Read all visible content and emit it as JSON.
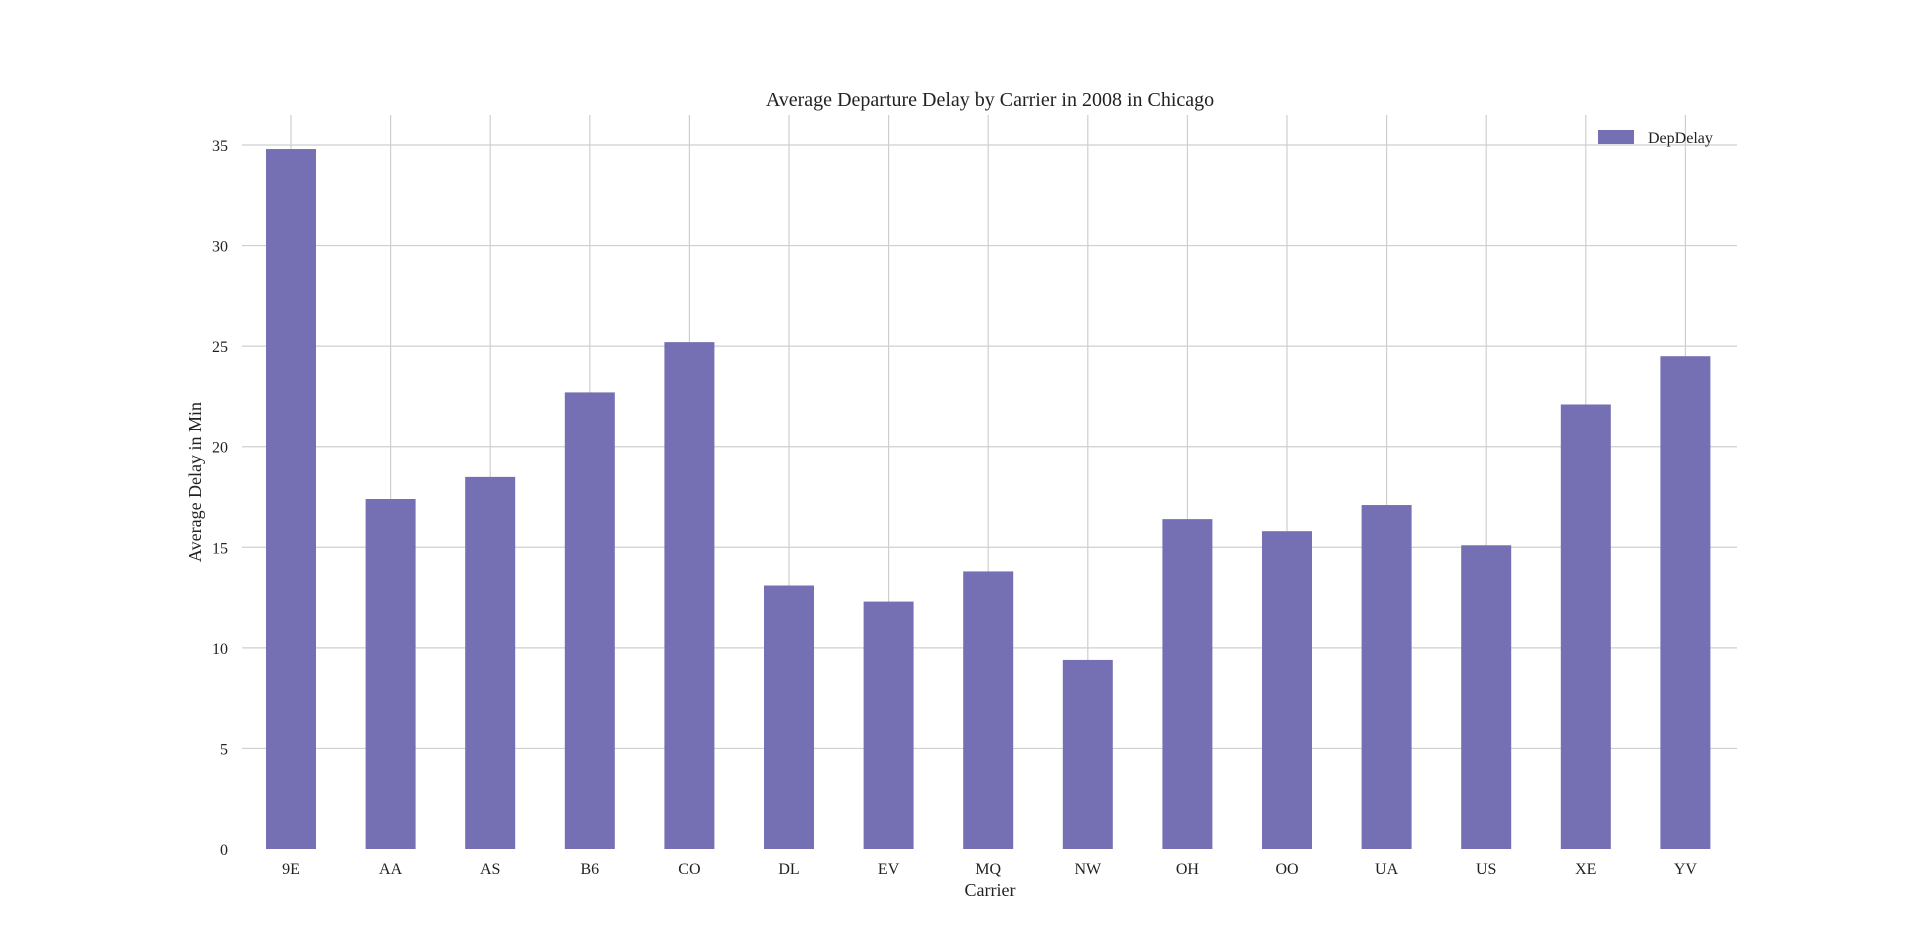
{
  "chart_data": {
    "type": "bar",
    "title": "Average Departure Delay by Carrier in 2008 in Chicago",
    "xlabel": "Carrier",
    "ylabel": "Average Delay in Min",
    "categories": [
      "9E",
      "AA",
      "AS",
      "B6",
      "CO",
      "DL",
      "EV",
      "MQ",
      "NW",
      "OH",
      "OO",
      "UA",
      "US",
      "XE",
      "YV"
    ],
    "series": [
      {
        "name": "DepDelay",
        "values": [
          34.8,
          17.4,
          18.5,
          22.7,
          25.2,
          13.1,
          12.3,
          13.8,
          9.4,
          16.4,
          15.8,
          17.1,
          15.1,
          22.1,
          24.5
        ],
        "color": "#7570b3"
      }
    ],
    "ylim": [
      0,
      35
    ],
    "yticks": [
      0,
      5,
      10,
      15,
      20,
      25,
      30,
      35
    ],
    "grid": true,
    "legend_position": "top-right",
    "colors": {
      "grid": "#cfcfcf",
      "text": "#222222",
      "background": "#ffffff"
    }
  }
}
